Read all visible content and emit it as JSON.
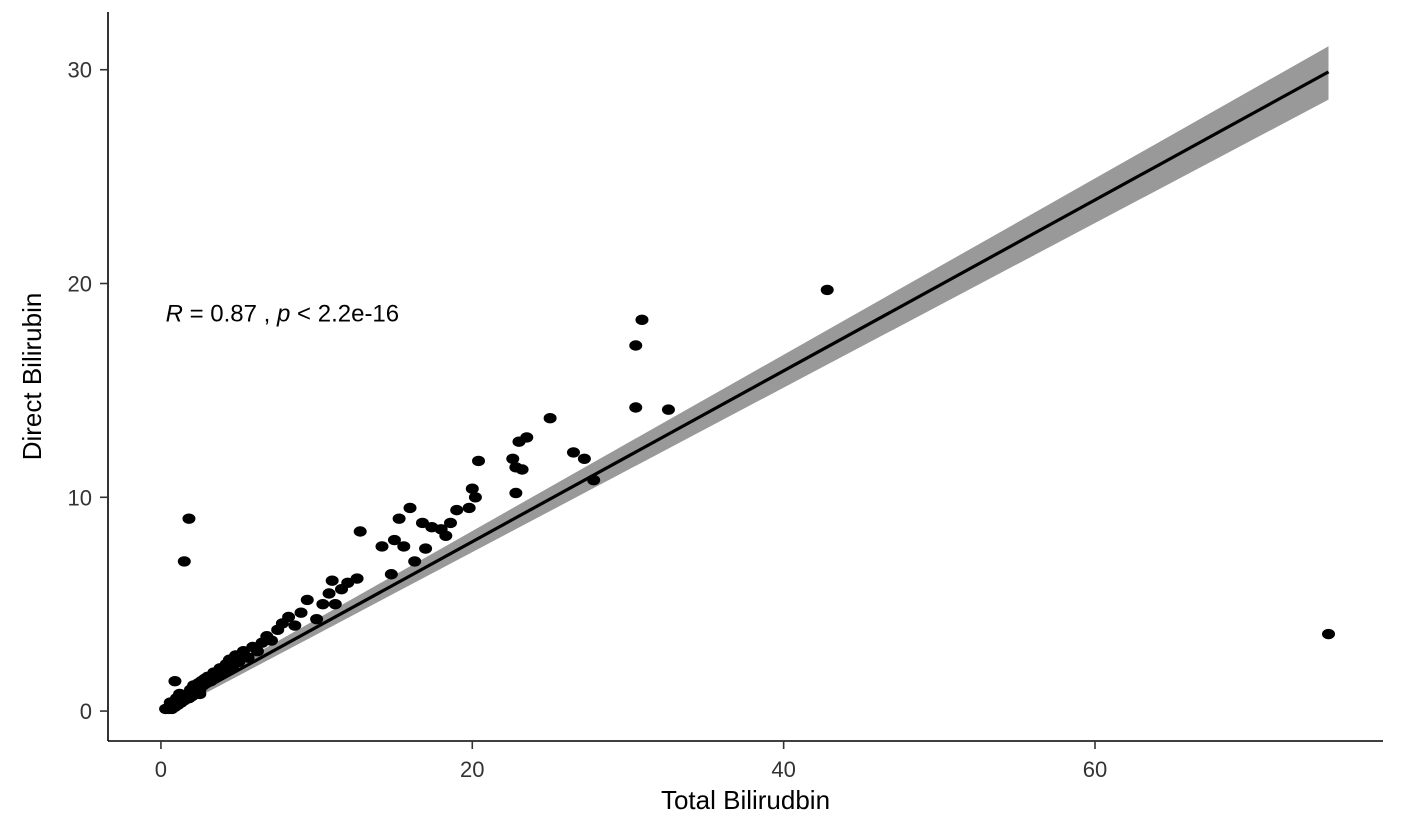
{
  "chart_data": {
    "type": "scatter",
    "xlabel": "Total Bilirudbin",
    "ylabel": "Direct Bilirubin",
    "xlim": [
      -3.4,
      78.5
    ],
    "ylim": [
      -1.4,
      32.7
    ],
    "x_ticks": [
      0,
      20,
      40,
      60
    ],
    "y_ticks": [
      0,
      10,
      20,
      30
    ],
    "x_tick_labels": [
      "0",
      "20",
      "40",
      "60"
    ],
    "y_tick_labels": [
      "0",
      "10",
      "20",
      "30"
    ],
    "grid": false,
    "annotation": {
      "r_symbol": "R",
      "r_text": " = 0.87 , ",
      "p_symbol": "p",
      "p_text": " < 2.2e-16",
      "x": 0.3,
      "y": 18.6
    },
    "regression": {
      "x": [
        0.3,
        75.0
      ],
      "y": [
        0.05,
        29.9
      ],
      "ci_lower_end": 28.6,
      "ci_upper_end": 31.1,
      "ci_lower_start": -0.15,
      "ci_upper_start": 0.3
    },
    "colors": {
      "points": "#000000",
      "line": "#000000",
      "ci_band": "#999999"
    },
    "series": [
      {
        "points": [
          [
            0.3,
            0.1
          ],
          [
            0.5,
            0.1
          ],
          [
            0.6,
            0.2
          ],
          [
            0.7,
            0.1
          ],
          [
            0.8,
            0.3
          ],
          [
            0.9,
            0.2
          ],
          [
            1.0,
            0.4
          ],
          [
            1.1,
            0.3
          ],
          [
            1.2,
            0.5
          ],
          [
            1.3,
            0.4
          ],
          [
            1.4,
            0.6
          ],
          [
            1.5,
            0.5
          ],
          [
            1.6,
            0.7
          ],
          [
            1.7,
            0.8
          ],
          [
            1.8,
            0.6
          ],
          [
            1.9,
            1.0
          ],
          [
            2.0,
            0.9
          ],
          [
            2.1,
            1.2
          ],
          [
            2.2,
            1.1
          ],
          [
            2.3,
            0.9
          ],
          [
            2.4,
            1.3
          ],
          [
            2.5,
            1.0
          ],
          [
            2.6,
            1.4
          ],
          [
            2.7,
            1.2
          ],
          [
            2.8,
            1.5
          ],
          [
            3.0,
            1.6
          ],
          [
            3.2,
            1.4
          ],
          [
            3.4,
            1.8
          ],
          [
            3.6,
            1.6
          ],
          [
            3.8,
            2.0
          ],
          [
            4.0,
            1.8
          ],
          [
            4.2,
            2.2
          ],
          [
            4.4,
            2.4
          ],
          [
            4.6,
            2.0
          ],
          [
            4.8,
            2.6
          ],
          [
            5.0,
            2.3
          ],
          [
            5.3,
            2.8
          ],
          [
            5.6,
            2.5
          ],
          [
            5.9,
            3.0
          ],
          [
            6.2,
            2.8
          ],
          [
            6.5,
            3.2
          ],
          [
            6.8,
            3.5
          ],
          [
            7.1,
            3.3
          ],
          [
            7.5,
            3.8
          ],
          [
            7.8,
            4.1
          ],
          [
            8.2,
            4.4
          ],
          [
            8.6,
            4.0
          ],
          [
            9.0,
            4.6
          ],
          [
            9.4,
            5.2
          ],
          [
            10.0,
            4.3
          ],
          [
            10.4,
            5.0
          ],
          [
            10.8,
            5.5
          ],
          [
            11.2,
            5.0
          ],
          [
            11.6,
            5.7
          ],
          [
            11.0,
            6.1
          ],
          [
            12.0,
            6.0
          ],
          [
            12.6,
            6.2
          ],
          [
            12.8,
            8.4
          ],
          [
            14.2,
            7.7
          ],
          [
            14.8,
            6.4
          ],
          [
            15.0,
            8.0
          ],
          [
            15.3,
            9.0
          ],
          [
            15.6,
            7.7
          ],
          [
            16.0,
            9.5
          ],
          [
            16.3,
            7.0
          ],
          [
            16.8,
            8.8
          ],
          [
            17.0,
            7.6
          ],
          [
            17.4,
            8.6
          ],
          [
            18.0,
            8.5
          ],
          [
            18.3,
            8.2
          ],
          [
            18.6,
            8.8
          ],
          [
            19.0,
            9.4
          ],
          [
            19.8,
            9.5
          ],
          [
            20.0,
            10.4
          ],
          [
            20.2,
            10.0
          ],
          [
            20.4,
            11.7
          ],
          [
            22.6,
            11.8
          ],
          [
            22.8,
            10.2
          ],
          [
            22.8,
            11.4
          ],
          [
            23.0,
            12.6
          ],
          [
            23.2,
            11.3
          ],
          [
            23.5,
            12.8
          ],
          [
            25.0,
            13.7
          ],
          [
            26.5,
            12.1
          ],
          [
            27.2,
            11.8
          ],
          [
            27.8,
            10.8
          ],
          [
            30.5,
            14.2
          ],
          [
            30.5,
            17.1
          ],
          [
            30.9,
            18.3
          ],
          [
            32.6,
            14.1
          ],
          [
            42.8,
            19.7
          ],
          [
            75.0,
            3.6
          ],
          [
            1.5,
            7.0
          ],
          [
            1.8,
            9.0
          ],
          [
            0.9,
            1.4
          ],
          [
            1.2,
            0.8
          ],
          [
            0.6,
            0.4
          ],
          [
            1.0,
            0.6
          ],
          [
            2.0,
            0.7
          ],
          [
            2.5,
            0.8
          ]
        ]
      }
    ]
  }
}
